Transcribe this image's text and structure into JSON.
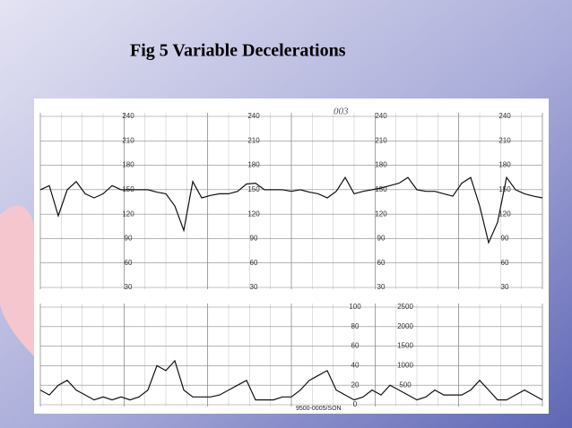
{
  "chart_data": [
    {
      "type": "line",
      "title": "Fig 5  Variable Decelerations",
      "annotation": "003",
      "ylim": [
        30,
        240
      ],
      "yticks": [
        30,
        60,
        90,
        120,
        150,
        180,
        210,
        240
      ],
      "grid": true,
      "series": [
        {
          "color": "#111111",
          "values": [
            150,
            155,
            118,
            150,
            160,
            145,
            140,
            145,
            155,
            150,
            150,
            150,
            150,
            147,
            145,
            130,
            100,
            160,
            140,
            143,
            145,
            145,
            148,
            157,
            158,
            150,
            150,
            150,
            148,
            150,
            147,
            145,
            140,
            148,
            165,
            145,
            148,
            150,
            152,
            155,
            158,
            165,
            150,
            148,
            148,
            145,
            142,
            158,
            165,
            130,
            85,
            110,
            165,
            150,
            145,
            142,
            140
          ]
        }
      ]
    },
    {
      "type": "line",
      "annotation": "9500-0005/SON",
      "ylim": [
        0,
        100
      ],
      "yticks": [
        0,
        20,
        40,
        60,
        80,
        100
      ],
      "y2lim": [
        0,
        2500
      ],
      "y2ticks": [
        500,
        1000,
        1500,
        2000,
        2500
      ],
      "grid": true,
      "series": [
        {
          "color": "#111111",
          "values": [
            15,
            10,
            20,
            25,
            15,
            10,
            5,
            8,
            5,
            8,
            5,
            8,
            15,
            40,
            35,
            45,
            15,
            8,
            8,
            8,
            10,
            15,
            20,
            25,
            5,
            5,
            5,
            8,
            8,
            15,
            25,
            30,
            35,
            15,
            10,
            5,
            8,
            15,
            10,
            20,
            15,
            10,
            5,
            8,
            15,
            10,
            10,
            10,
            15,
            25,
            15,
            5,
            5,
            10,
            15,
            10,
            5
          ]
        }
      ]
    }
  ]
}
